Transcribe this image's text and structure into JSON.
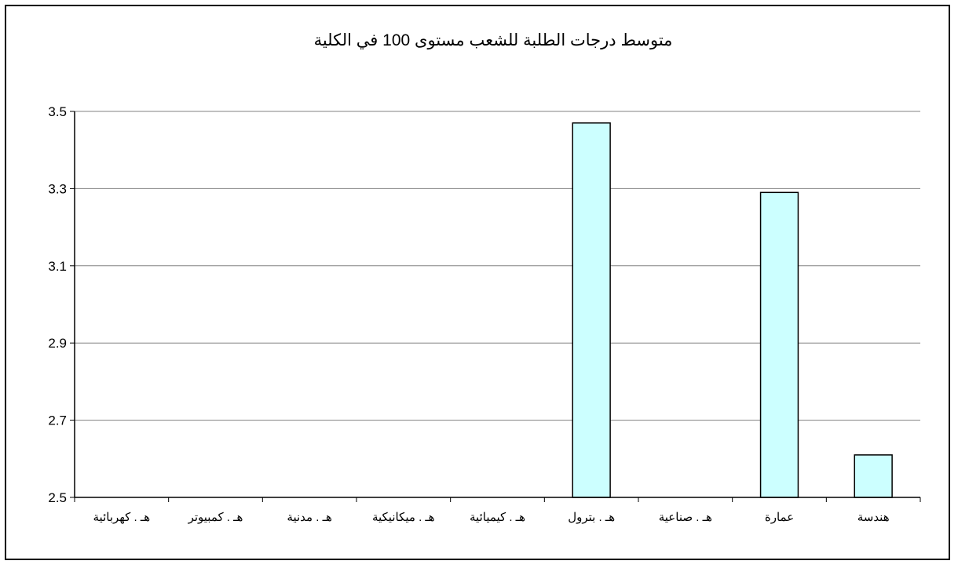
{
  "chart_data": {
    "type": "bar",
    "title": "متوسط درجات الطلبة للشعب مستوى 100  في الكلية",
    "categories": [
      "هـ . كهربائية",
      "هـ . كمبيوتر",
      "هـ . مدنية",
      "هـ . ميكانيكية",
      "هـ . كيميائية",
      "هـ . بترول",
      "هـ . صناعية",
      "عمارة",
      "هندسة"
    ],
    "values": [
      null,
      null,
      null,
      null,
      null,
      3.47,
      null,
      3.29,
      2.61
    ],
    "ylim": [
      2.5,
      3.5
    ],
    "yticks": [
      "2.5",
      "2.7",
      "2.9",
      "3.1",
      "3.3",
      "3.5"
    ],
    "grid": true,
    "legend": "none",
    "colors": {
      "bar_fill": "#ccffff",
      "bar_stroke": "#000000",
      "grid": "#808080",
      "axis": "#000000"
    }
  }
}
